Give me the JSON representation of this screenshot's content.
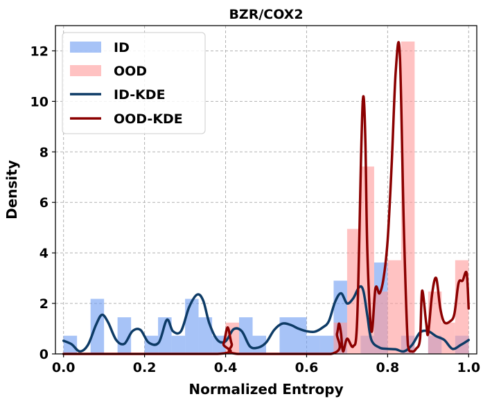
{
  "chart_data": {
    "type": "histogram+kde",
    "title": "BZR/COX2",
    "xlabel": "Normalized Entropy",
    "ylabel": "Density",
    "xlim": [
      -0.02,
      1.02
    ],
    "ylim": [
      0,
      13
    ],
    "x_ticks": [
      0.0,
      0.2,
      0.4,
      0.6,
      0.8,
      1.0
    ],
    "x_tick_labels": [
      "0.0",
      "0.2",
      "0.4",
      "0.6",
      "0.8",
      "1.0"
    ],
    "y_ticks": [
      0,
      2,
      4,
      6,
      8,
      10,
      12
    ],
    "y_tick_labels": [
      "0",
      "2",
      "4",
      "6",
      "8",
      "10",
      "12"
    ],
    "grid": true,
    "legend_position": "top-left",
    "bin_edges": [
      0.0,
      0.0333,
      0.0667,
      0.1,
      0.1333,
      0.1667,
      0.2,
      0.2333,
      0.2667,
      0.3,
      0.3333,
      0.3667,
      0.4,
      0.4333,
      0.4667,
      0.5,
      0.5333,
      0.5667,
      0.6,
      0.6333,
      0.6667,
      0.7,
      0.7333,
      0.7667,
      0.8,
      0.8333,
      0.8667,
      0.9,
      0.9333,
      0.9667,
      1.0
    ],
    "series": [
      {
        "name": "ID",
        "kind": "histogram",
        "color": "#6d9bf1",
        "values": [
          0.72,
          0,
          2.18,
          0,
          1.45,
          0,
          0.72,
          1.45,
          0.72,
          2.18,
          1.45,
          0.72,
          0,
          1.45,
          0.72,
          0,
          1.45,
          1.45,
          0.72,
          0.72,
          2.9,
          0,
          0.72,
          3.62,
          0,
          0.72,
          0,
          0.72,
          0,
          0.72
        ]
      },
      {
        "name": "OOD",
        "kind": "histogram",
        "color": "#ff9999",
        "values": [
          0,
          0,
          0,
          0,
          0,
          0,
          0,
          0,
          0,
          0,
          0,
          0,
          1.24,
          0,
          0,
          0,
          0,
          0,
          0,
          0,
          1.24,
          4.95,
          7.42,
          2.47,
          3.71,
          12.37,
          0,
          2.47,
          1.24,
          3.71
        ]
      },
      {
        "name": "ID-KDE",
        "kind": "kde",
        "color": "#0d3b66",
        "x": [
          0.0,
          0.02,
          0.04,
          0.06,
          0.08,
          0.095,
          0.11,
          0.13,
          0.15,
          0.17,
          0.19,
          0.21,
          0.235,
          0.255,
          0.27,
          0.29,
          0.31,
          0.33,
          0.345,
          0.36,
          0.38,
          0.4,
          0.42,
          0.44,
          0.46,
          0.48,
          0.5,
          0.52,
          0.54,
          0.56,
          0.58,
          0.6,
          0.62,
          0.64,
          0.655,
          0.67,
          0.685,
          0.7,
          0.715,
          0.73,
          0.74,
          0.75,
          0.76,
          0.78,
          0.8,
          0.82,
          0.84,
          0.86,
          0.88,
          0.9,
          0.92,
          0.94,
          0.96,
          0.98,
          1.0
        ],
        "y": [
          0.52,
          0.38,
          0.1,
          0.35,
          1.15,
          1.55,
          1.25,
          0.55,
          0.4,
          0.9,
          0.95,
          0.45,
          0.45,
          1.35,
          0.9,
          0.9,
          1.85,
          2.35,
          2.1,
          1.2,
          0.55,
          0.5,
          0.98,
          0.9,
          0.3,
          0.25,
          0.45,
          0.95,
          1.2,
          1.15,
          1.0,
          0.9,
          0.88,
          1.05,
          1.3,
          2.05,
          2.4,
          2.0,
          2.2,
          2.65,
          2.5,
          1.5,
          0.55,
          0.25,
          0.2,
          0.18,
          0.1,
          0.35,
          0.85,
          0.9,
          0.7,
          0.55,
          0.2,
          0.35,
          0.55
        ]
      },
      {
        "name": "OOD-KDE",
        "kind": "kde",
        "color": "#8b0000",
        "x": [
          0.0,
          0.38,
          0.395,
          0.405,
          0.415,
          0.43,
          0.66,
          0.675,
          0.68,
          0.685,
          0.69,
          0.7,
          0.715,
          0.725,
          0.735,
          0.74,
          0.745,
          0.75,
          0.76,
          0.77,
          0.78,
          0.79,
          0.8,
          0.81,
          0.82,
          0.83,
          0.84,
          0.85,
          0.86,
          0.87,
          0.88,
          0.885,
          0.895,
          0.9,
          0.91,
          0.92,
          0.93,
          0.94,
          0.955,
          0.965,
          0.975,
          0.985,
          0.995,
          1.0
        ],
        "y": [
          0,
          0,
          0.4,
          1.05,
          0.4,
          0,
          0,
          0.8,
          1.2,
          0.8,
          0.1,
          0.6,
          0.3,
          1.4,
          8.2,
          10.2,
          8.5,
          4.0,
          0.9,
          2.6,
          2.4,
          3.0,
          4.5,
          7.5,
          11.2,
          11.9,
          5.0,
          0.35,
          0.1,
          0.2,
          0.6,
          2.5,
          1.25,
          0.8,
          2.4,
          3.0,
          1.8,
          1.25,
          1.3,
          1.6,
          2.8,
          2.9,
          3.2,
          1.8
        ]
      }
    ]
  }
}
